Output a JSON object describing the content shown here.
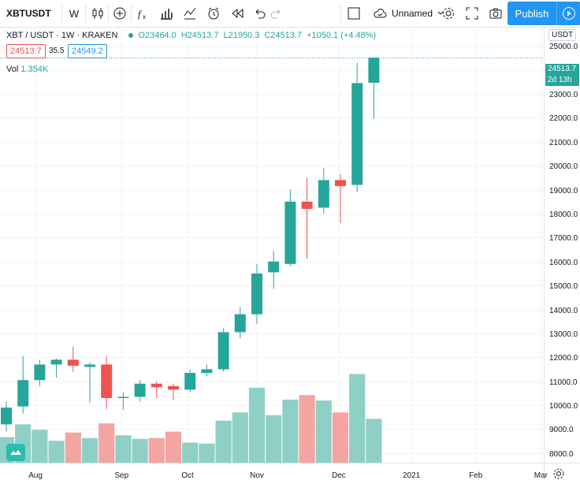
{
  "toolbar": {
    "symbol": "XBTUSDT",
    "interval": "W",
    "layout_name": "Unnamed",
    "publish_label": "Publish"
  },
  "legend": {
    "title": "XBT / USDT · 1W · KRAKEN",
    "open": "O23464.0",
    "high": "H24513.7",
    "low": "L21950.3",
    "close": "C24513.7",
    "change": "+1050.1 (+4.48%)",
    "bid": "24513.7",
    "spread": "35.5",
    "ask": "24549.2",
    "volume_label": "Vol",
    "volume_value": "1.354K"
  },
  "price_axis": {
    "currency": "USDT",
    "last_price": "24513.7",
    "countdown": "2d 13h"
  },
  "colors": {
    "up": "#26a69a",
    "down": "#ef5350",
    "vol_up": "#8fd0c6",
    "vol_down": "#f4a5a2",
    "accent": "#2196f3"
  },
  "chart_data": {
    "type": "candlestick",
    "interval": "1W",
    "ylim": [
      7600,
      25800
    ],
    "y_ticks": [
      8000,
      9000,
      10000,
      11000,
      12000,
      13000,
      14000,
      15000,
      16000,
      17000,
      18000,
      19000,
      20000,
      21000,
      22000,
      23000,
      24000,
      25000
    ],
    "x_labels": [
      "Aug",
      "Sep",
      "Oct",
      "Nov",
      "Dec",
      "2021",
      "Feb",
      "Mar"
    ],
    "candles": [
      {
        "o": 9200,
        "h": 10150,
        "l": 8900,
        "c": 9900
      },
      {
        "o": 9950,
        "h": 12050,
        "l": 9650,
        "c": 11050
      },
      {
        "o": 11050,
        "h": 11900,
        "l": 10800,
        "c": 11700
      },
      {
        "o": 11700,
        "h": 11950,
        "l": 11150,
        "c": 11900
      },
      {
        "o": 11900,
        "h": 12450,
        "l": 11400,
        "c": 11650
      },
      {
        "o": 11600,
        "h": 11800,
        "l": 10100,
        "c": 11700
      },
      {
        "o": 11700,
        "h": 12050,
        "l": 9850,
        "c": 10300
      },
      {
        "o": 10300,
        "h": 10550,
        "l": 9800,
        "c": 10350
      },
      {
        "o": 10350,
        "h": 11050,
        "l": 10150,
        "c": 10900
      },
      {
        "o": 10900,
        "h": 11000,
        "l": 10300,
        "c": 10750
      },
      {
        "o": 10800,
        "h": 10900,
        "l": 10200,
        "c": 10650
      },
      {
        "o": 10650,
        "h": 11500,
        "l": 10550,
        "c": 11350
      },
      {
        "o": 11350,
        "h": 11700,
        "l": 11200,
        "c": 11500
      },
      {
        "o": 11500,
        "h": 13200,
        "l": 11400,
        "c": 13050
      },
      {
        "o": 13050,
        "h": 14100,
        "l": 12800,
        "c": 13800
      },
      {
        "o": 13800,
        "h": 15900,
        "l": 13400,
        "c": 15500
      },
      {
        "o": 15550,
        "h": 16450,
        "l": 14850,
        "c": 16000
      },
      {
        "o": 15900,
        "h": 19000,
        "l": 15800,
        "c": 18500
      },
      {
        "o": 18500,
        "h": 19500,
        "l": 16100,
        "c": 18200
      },
      {
        "o": 18250,
        "h": 19900,
        "l": 18000,
        "c": 19400
      },
      {
        "o": 19400,
        "h": 19650,
        "l": 17600,
        "c": 19150
      },
      {
        "o": 19200,
        "h": 24300,
        "l": 18900,
        "c": 23450
      },
      {
        "o": 23464,
        "h": 24513.7,
        "l": 21950.3,
        "c": 24513.7
      }
    ],
    "volume_ratio": [
      0.28,
      0.42,
      0.36,
      0.24,
      0.33,
      0.27,
      0.43,
      0.3,
      0.26,
      0.27,
      0.34,
      0.22,
      0.21,
      0.46,
      0.55,
      0.82,
      0.52,
      0.69,
      0.74,
      0.68,
      0.55,
      0.97,
      0.48
    ]
  }
}
